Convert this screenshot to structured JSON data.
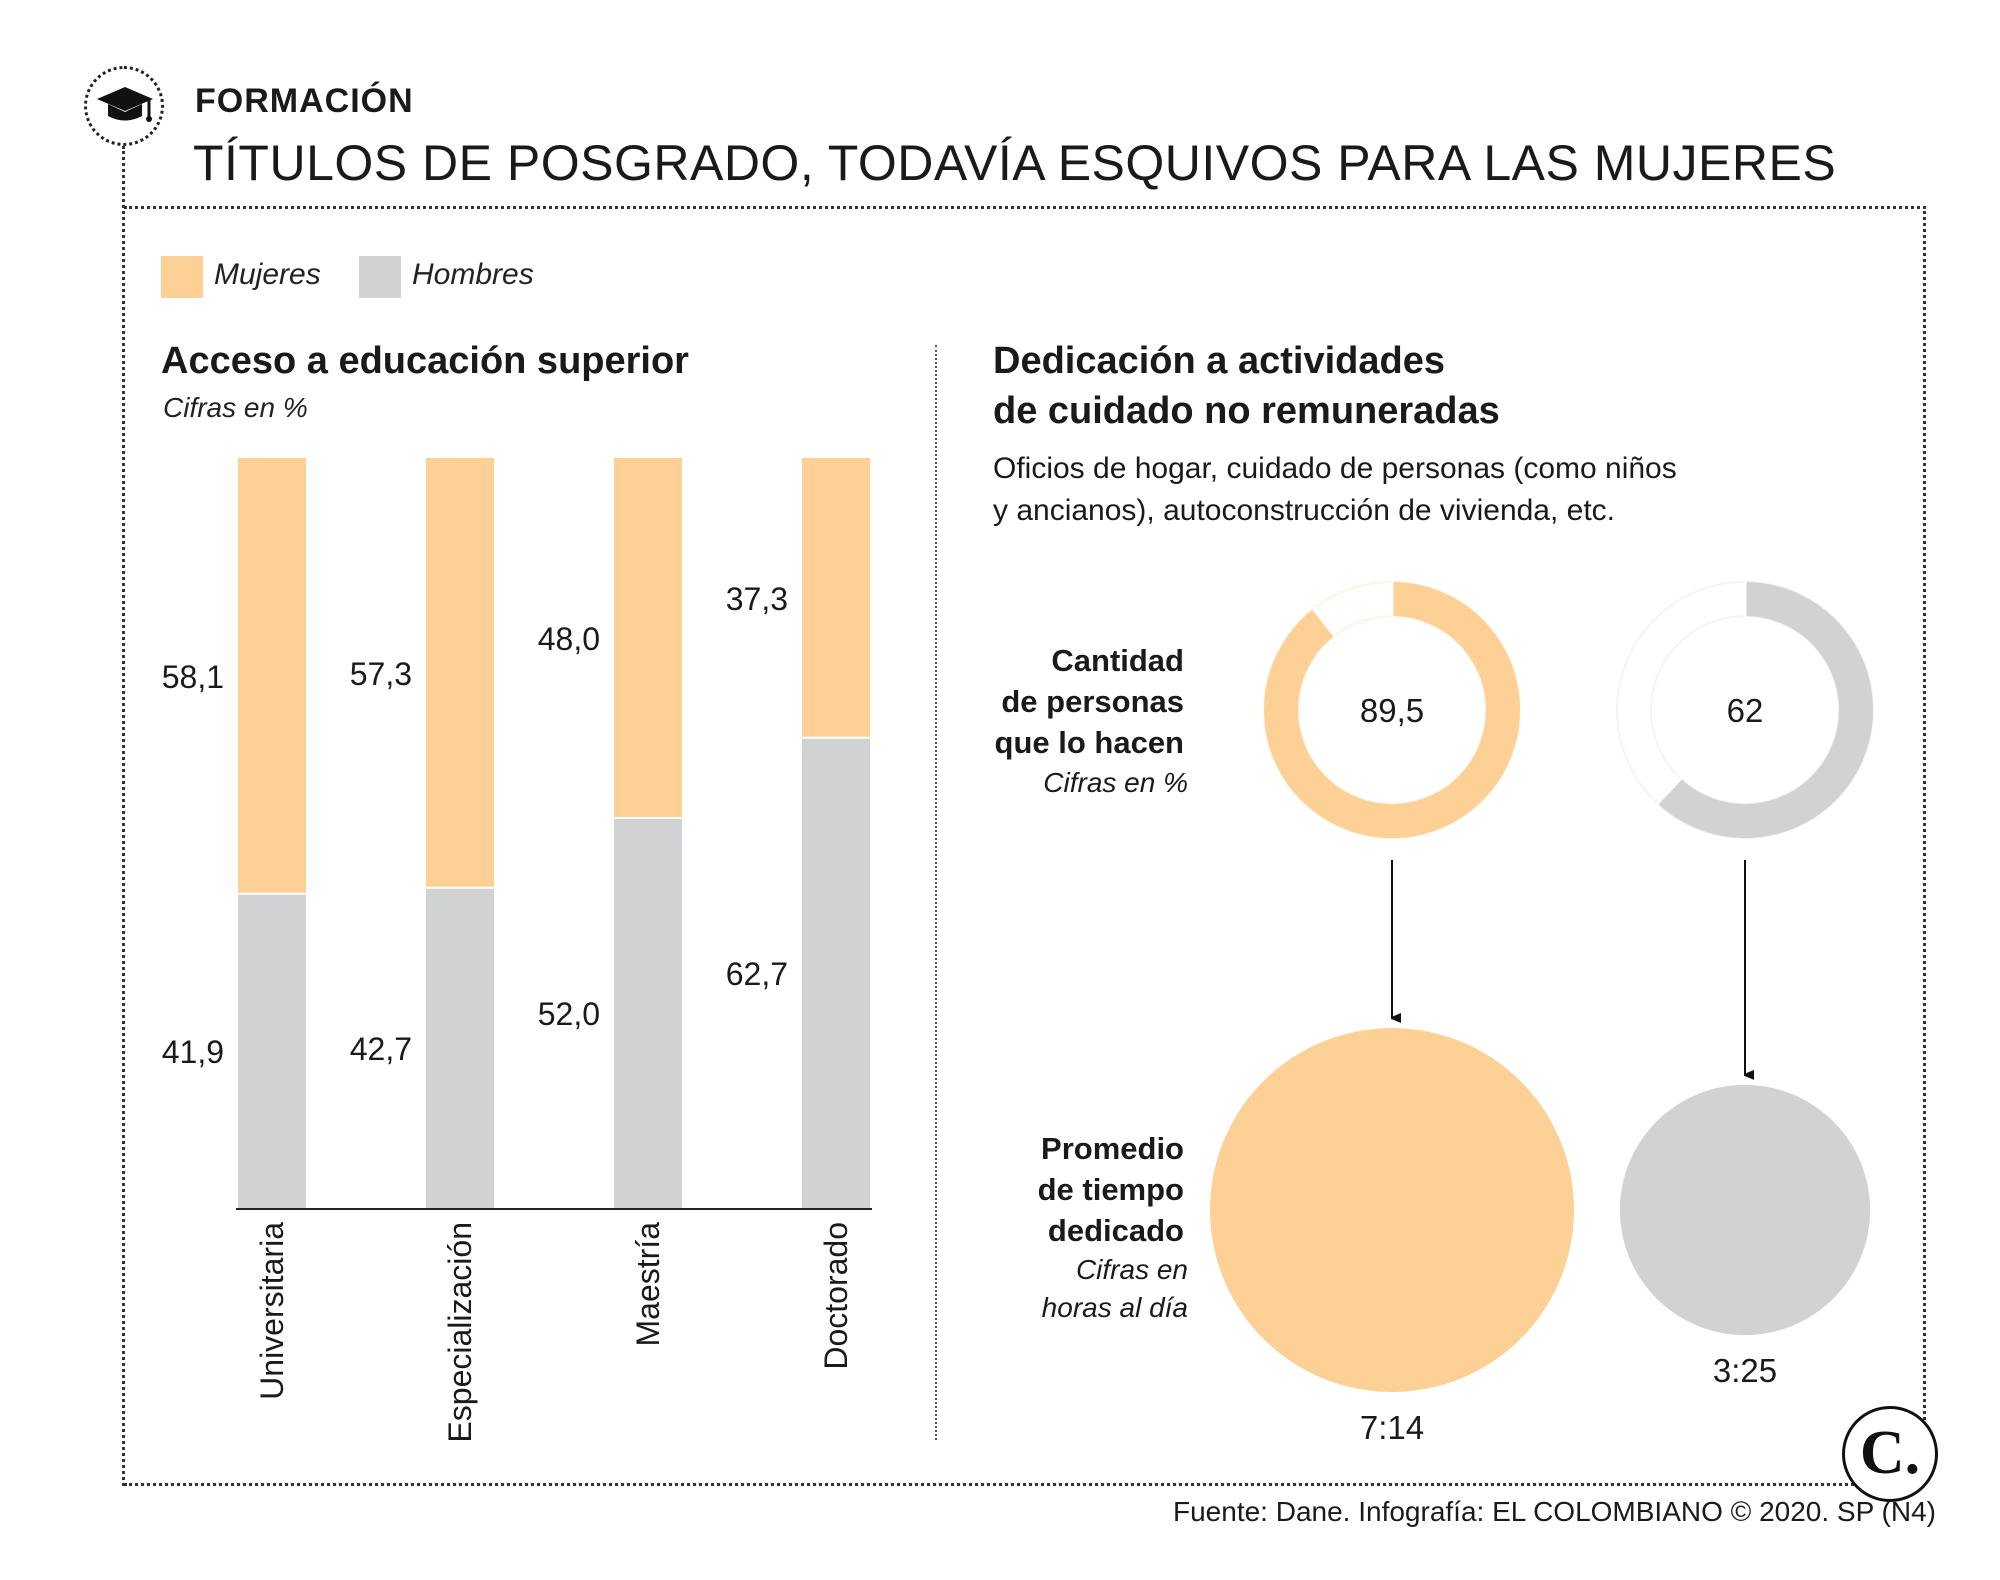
{
  "header": {
    "kicker": "FORMACIÓN",
    "title": "TÍTULOS DE POSGRADO, TODAVÍA ESQUIVOS PARA LAS MUJERES"
  },
  "legend": {
    "women_label": "Mujeres",
    "men_label": "Hombres"
  },
  "colors": {
    "women": "#fdd096",
    "men": "#d1d2d4",
    "text": "#1a1a1a"
  },
  "left_panel": {
    "title": "Acceso a educación superior",
    "subtitle": "Cifras en %"
  },
  "right_panel": {
    "title_line1": "Dedicación a actividades",
    "title_line2": "de cuidado no remuneradas",
    "desc_line1": "Oficios de hogar, cuidado de personas (como niños",
    "desc_line2": "y ancianos), autoconstrucción de vivienda, etc.",
    "people_label_1": "Cantidad",
    "people_label_2": "de personas",
    "people_label_3": "que lo hacen",
    "people_sub": "Cifras en %",
    "time_label_1": "Promedio",
    "time_label_2": "de tiempo",
    "time_label_3": "dedicado",
    "time_sub_1": "Cifras en",
    "time_sub_2": "horas al día"
  },
  "chart_data": [
    {
      "type": "bar",
      "stacked": true,
      "title": "Acceso a educación superior",
      "subtitle": "Cifras en %",
      "categories": [
        "Universitaria",
        "Especialización",
        "Maestría",
        "Doctorado"
      ],
      "series": [
        {
          "name": "Mujeres",
          "values": [
            58.1,
            57.3,
            48.0,
            37.3
          ],
          "labels": [
            "58,1",
            "57,3",
            "48,0",
            "37,3"
          ]
        },
        {
          "name": "Hombres",
          "values": [
            41.9,
            42.7,
            52.0,
            62.7
          ],
          "labels": [
            "41,9",
            "42,7",
            "52,0",
            "62,7"
          ]
        }
      ],
      "ylim": [
        0,
        100
      ]
    },
    {
      "type": "pie",
      "variant": "donut",
      "title": "Cantidad de personas que lo hacen",
      "subtitle": "Cifras en %",
      "items": [
        {
          "name": "Mujeres",
          "value": 89.5,
          "label": "89,5"
        },
        {
          "name": "Hombres",
          "value": 62,
          "label": "62"
        }
      ]
    },
    {
      "type": "bubble",
      "title": "Promedio de tiempo dedicado",
      "subtitle": "Cifras en horas al día",
      "items": [
        {
          "name": "Mujeres",
          "hours": 7.233,
          "label": "7:14"
        },
        {
          "name": "Hombres",
          "hours": 3.417,
          "label": "3:25"
        }
      ]
    }
  ],
  "footer": {
    "source": "Fuente: Dane. Infografía: EL COLOMBIANO © 2020. SP (N4)",
    "logo_text": "C."
  }
}
